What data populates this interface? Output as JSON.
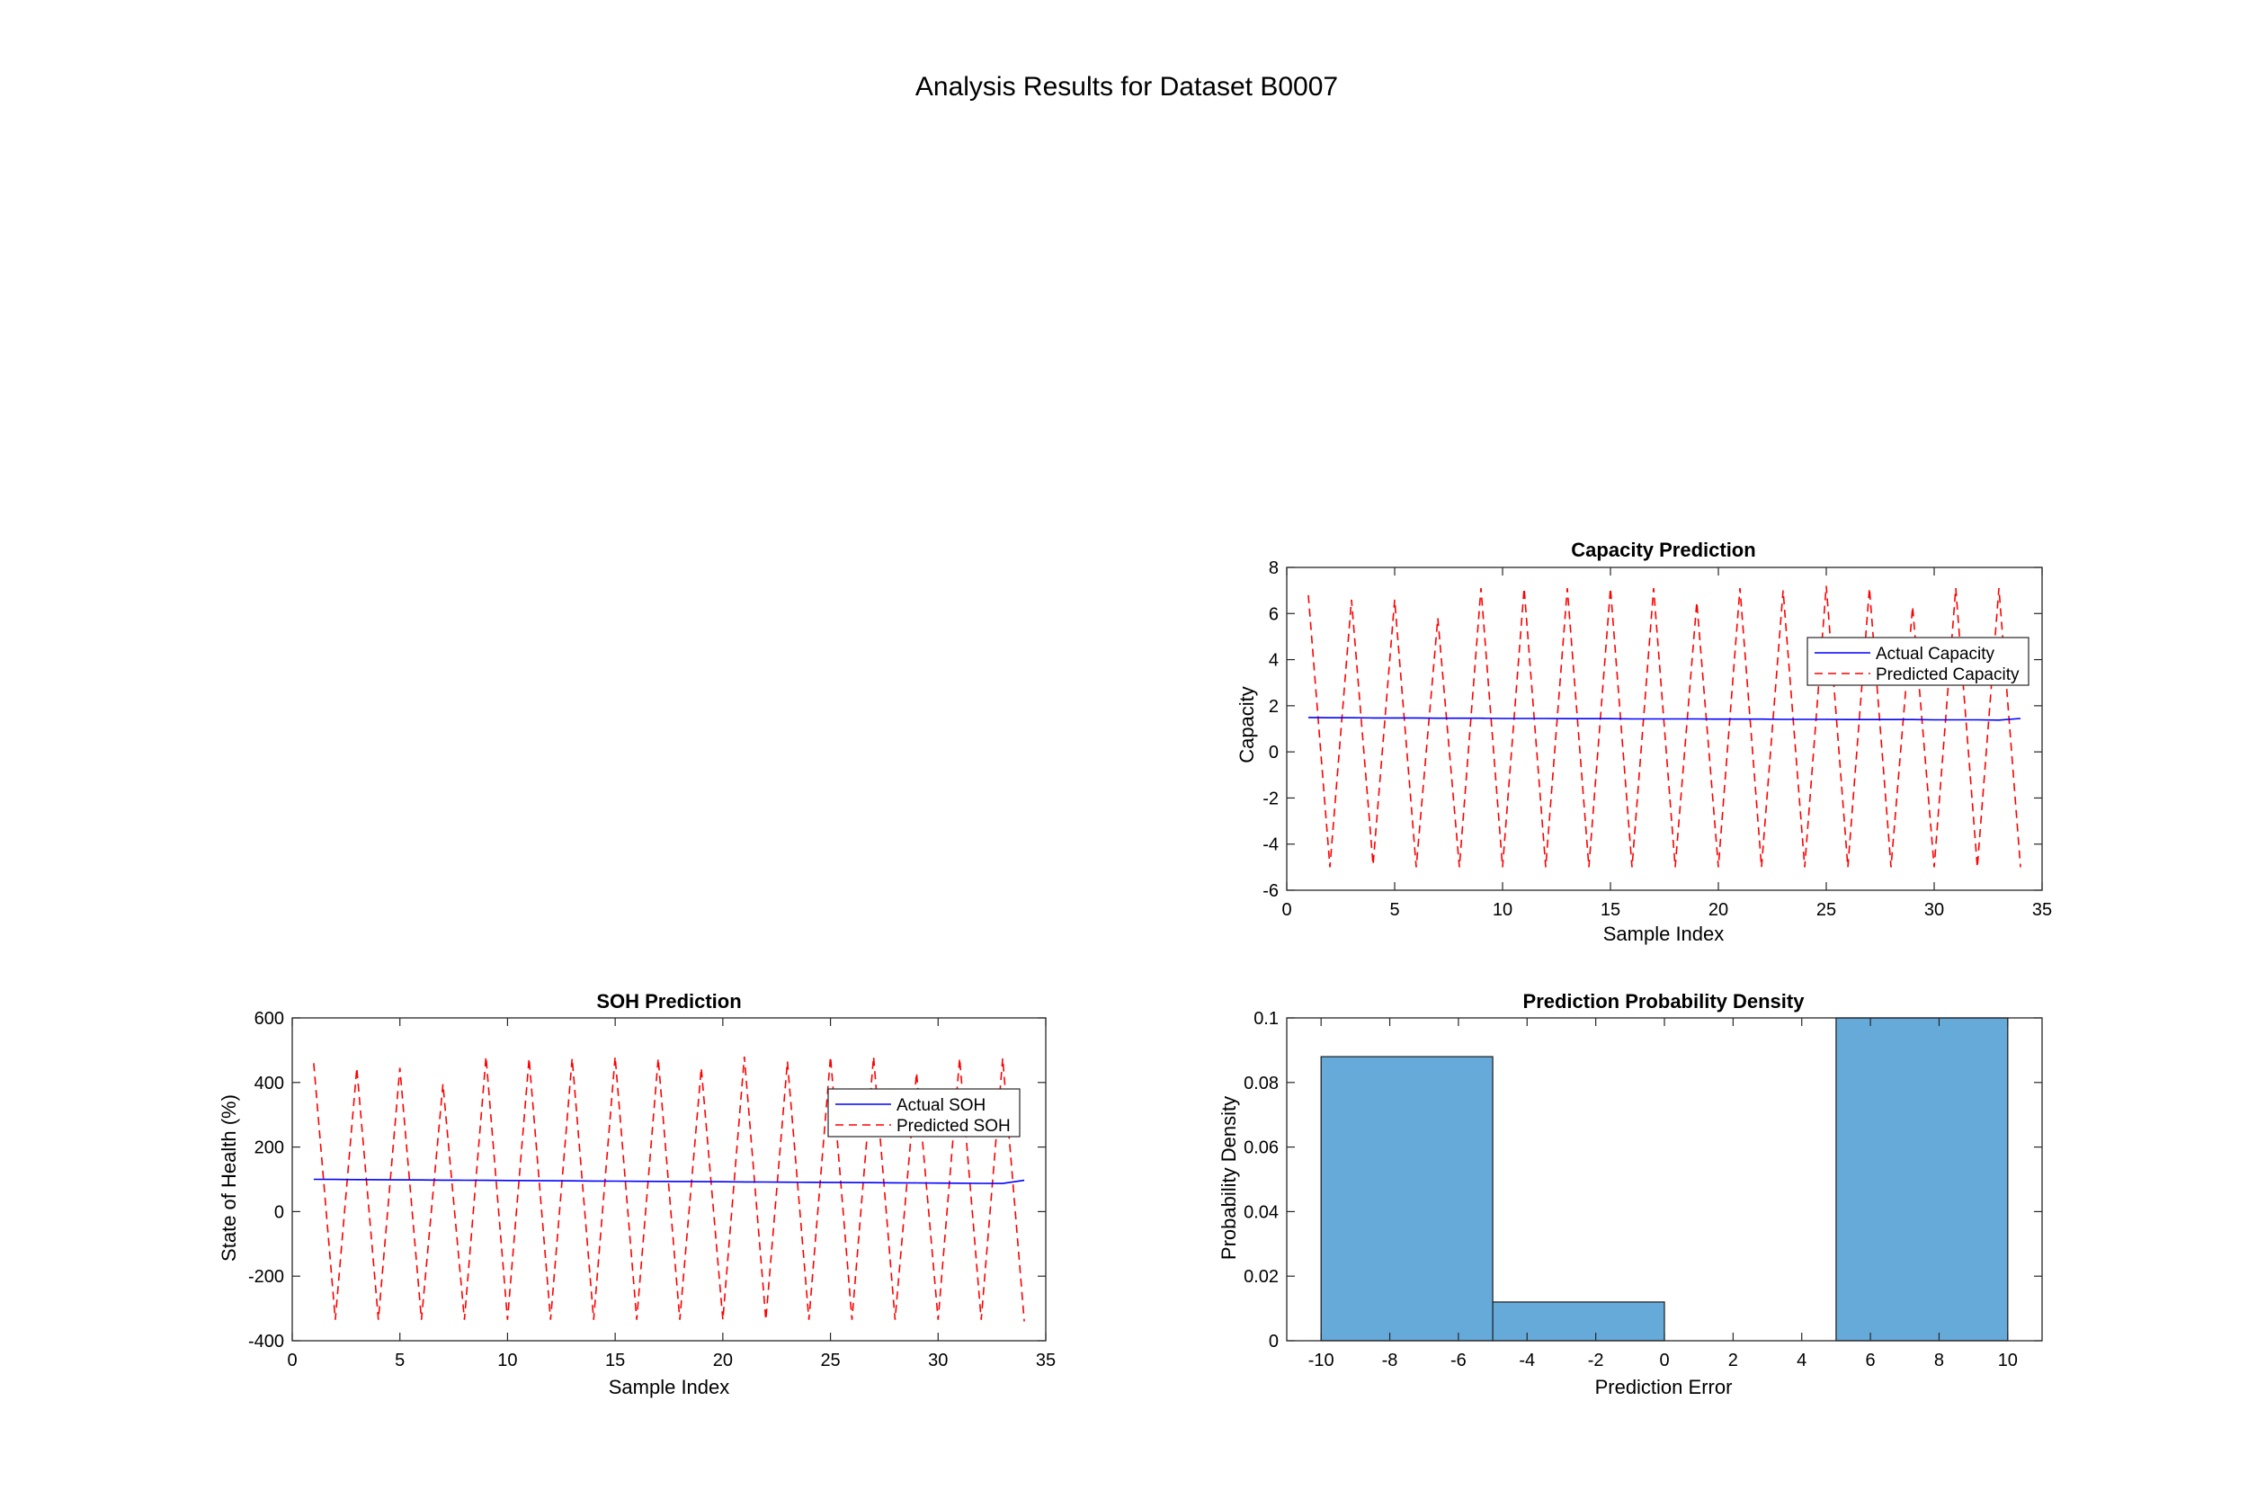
{
  "figure": {
    "title": "Analysis Results for Dataset B0007"
  },
  "chart_data": [
    {
      "id": "capacity",
      "type": "line",
      "title": "Capacity Prediction",
      "xlabel": "Sample Index",
      "ylabel": "Capacity",
      "xlim": [
        0,
        35
      ],
      "ylim": [
        -6,
        8
      ],
      "xticks": [
        0,
        5,
        10,
        15,
        20,
        25,
        30,
        35
      ],
      "yticks": [
        -6,
        -4,
        -2,
        0,
        2,
        4,
        6,
        8
      ],
      "grid": false,
      "legend_position": "upper-right",
      "series": [
        {
          "name": "Actual Capacity",
          "color": "#0000FF",
          "style": "solid",
          "x": [
            1,
            2,
            3,
            4,
            5,
            6,
            7,
            8,
            9,
            10,
            11,
            12,
            13,
            14,
            15,
            16,
            17,
            18,
            19,
            20,
            21,
            22,
            23,
            24,
            25,
            26,
            27,
            28,
            29,
            30,
            31,
            32,
            33,
            34
          ],
          "y": [
            1.49,
            1.48,
            1.48,
            1.47,
            1.47,
            1.47,
            1.46,
            1.46,
            1.46,
            1.45,
            1.45,
            1.45,
            1.44,
            1.44,
            1.44,
            1.43,
            1.43,
            1.43,
            1.43,
            1.42,
            1.42,
            1.42,
            1.41,
            1.41,
            1.41,
            1.4,
            1.4,
            1.4,
            1.4,
            1.39,
            1.39,
            1.39,
            1.38,
            1.45
          ]
        },
        {
          "name": "Predicted Capacity",
          "color": "#FF0000",
          "style": "dashed",
          "x": [
            1,
            2,
            3,
            4,
            5,
            6,
            7,
            8,
            9,
            10,
            11,
            12,
            13,
            14,
            15,
            16,
            17,
            18,
            19,
            20,
            21,
            22,
            23,
            24,
            25,
            26,
            27,
            28,
            29,
            30,
            31,
            32,
            33,
            34
          ],
          "y": [
            6.8,
            -5.0,
            6.6,
            -4.9,
            6.6,
            -5.0,
            5.8,
            -5.0,
            7.1,
            -5.0,
            7.1,
            -5.0,
            7.1,
            -5.0,
            7.1,
            -5.0,
            7.1,
            -5.0,
            6.5,
            -5.0,
            7.1,
            -5.0,
            7.0,
            -5.0,
            7.2,
            -5.0,
            7.1,
            -5.0,
            6.3,
            -5.0,
            7.1,
            -5.0,
            7.1,
            -5.0
          ]
        }
      ]
    },
    {
      "id": "soh",
      "type": "line",
      "title": "SOH Prediction",
      "xlabel": "Sample Index",
      "ylabel": "State of Health (%)",
      "xlim": [
        0,
        35
      ],
      "ylim": [
        -400,
        600
      ],
      "xticks": [
        0,
        5,
        10,
        15,
        20,
        25,
        30,
        35
      ],
      "yticks": [
        -400,
        -200,
        0,
        200,
        400,
        600
      ],
      "grid": false,
      "legend_position": "upper-right",
      "series": [
        {
          "name": "Actual SOH",
          "color": "#0000FF",
          "style": "solid",
          "x": [
            1,
            2,
            3,
            4,
            5,
            6,
            7,
            8,
            9,
            10,
            11,
            12,
            13,
            14,
            15,
            16,
            17,
            18,
            19,
            20,
            21,
            22,
            23,
            24,
            25,
            26,
            27,
            28,
            29,
            30,
            31,
            32,
            33,
            34
          ],
          "y": [
            100,
            99.6,
            99.2,
            98.8,
            98.4,
            98.0,
            97.6,
            97.2,
            96.8,
            96.4,
            96.0,
            95.6,
            95.2,
            94.8,
            94.4,
            94.0,
            93.6,
            93.2,
            92.8,
            92.4,
            92.0,
            91.6,
            91.2,
            90.8,
            90.4,
            90.0,
            89.6,
            89.2,
            88.8,
            88.4,
            88.0,
            87.6,
            87.2,
            97
          ]
        },
        {
          "name": "Predicted SOH",
          "color": "#FF0000",
          "style": "dashed",
          "x": [
            1,
            2,
            3,
            4,
            5,
            6,
            7,
            8,
            9,
            10,
            11,
            12,
            13,
            14,
            15,
            16,
            17,
            18,
            19,
            20,
            21,
            22,
            23,
            24,
            25,
            26,
            27,
            28,
            29,
            30,
            31,
            32,
            33,
            34
          ],
          "y": [
            460,
            -335,
            445,
            -335,
            445,
            -335,
            395,
            -335,
            480,
            -335,
            475,
            -335,
            475,
            -335,
            480,
            -335,
            475,
            -335,
            445,
            -335,
            480,
            -335,
            465,
            -335,
            480,
            -335,
            480,
            -335,
            430,
            -335,
            475,
            -335,
            475,
            -340
          ]
        }
      ]
    },
    {
      "id": "pdf",
      "type": "bar",
      "title": "Prediction Probability Density",
      "xlabel": "Prediction Error",
      "ylabel": "Probability Density",
      "xlim": [
        -11,
        11
      ],
      "ylim": [
        0,
        0.1
      ],
      "xticks": [
        -10,
        -8,
        -6,
        -4,
        -2,
        0,
        2,
        4,
        6,
        8,
        10
      ],
      "yticks": [
        0,
        0.02,
        0.04,
        0.06,
        0.08,
        0.1
      ],
      "ytick_labels": [
        "0",
        "0.02",
        "0.04",
        "0.06",
        "0.08",
        "0.1"
      ],
      "grid": false,
      "bar_color": "#66AADA",
      "bins": [
        {
          "from": -10,
          "to": -5,
          "value": 0.088
        },
        {
          "from": -5,
          "to": 0,
          "value": 0.012
        },
        {
          "from": 0,
          "to": 5,
          "value": 0
        },
        {
          "from": 5,
          "to": 10,
          "value": 0.1
        }
      ]
    }
  ]
}
